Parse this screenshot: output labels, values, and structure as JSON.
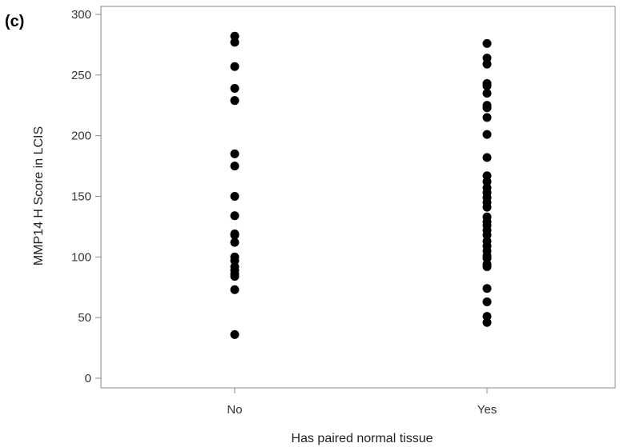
{
  "panel_label": "(c)",
  "chart_data": {
    "type": "scatter",
    "title": "",
    "xlabel": "Has paired normal tissue",
    "ylabel": "MMP14  H Score in LCIS",
    "categories": [
      "No",
      "Yes"
    ],
    "ylim": [
      0,
      300
    ],
    "yticks": [
      0,
      50,
      100,
      150,
      200,
      250,
      300
    ],
    "grid": false,
    "marker_color": "#000000",
    "series": [
      {
        "category": "No",
        "values": [
          282,
          277,
          257,
          239,
          229,
          185,
          175,
          150,
          134,
          119,
          118,
          112,
          100,
          97,
          92,
          89,
          86,
          84,
          73,
          36
        ]
      },
      {
        "category": "Yes",
        "values": [
          276,
          264,
          259,
          243,
          241,
          235,
          225,
          223,
          215,
          201,
          182,
          167,
          162,
          157,
          153,
          149,
          145,
          141,
          133,
          129,
          126,
          122,
          118,
          113,
          109,
          105,
          101,
          99,
          94,
          92,
          74,
          63,
          51,
          46
        ]
      }
    ]
  }
}
